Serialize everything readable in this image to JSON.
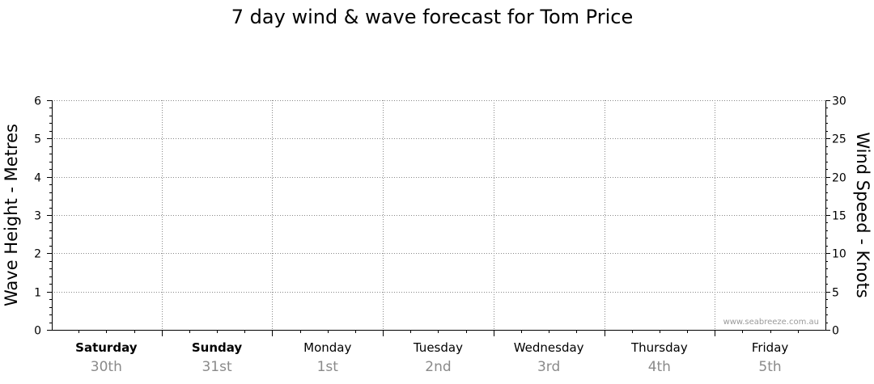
{
  "chart_data": {
    "type": "line",
    "title": "7 day wind & wave forecast for Tom Price",
    "y_left": {
      "label": "Wave Height - Metres",
      "range": [
        0,
        6
      ],
      "ticks": [
        0,
        1,
        2,
        3,
        4,
        5,
        6
      ]
    },
    "y_right": {
      "label": "Wind Speed - Knots",
      "range": [
        0,
        30
      ],
      "ticks": [
        0,
        5,
        10,
        15,
        20,
        25,
        30
      ]
    },
    "days": [
      {
        "name": "Saturday",
        "date": "30th",
        "bold": true
      },
      {
        "name": "Sunday",
        "date": "31st",
        "bold": true
      },
      {
        "name": "Monday",
        "date": "1st",
        "bold": false
      },
      {
        "name": "Tuesday",
        "date": "2nd",
        "bold": false
      },
      {
        "name": "Wednesday",
        "date": "3rd",
        "bold": false
      },
      {
        "name": "Thursday",
        "date": "4th",
        "bold": false
      },
      {
        "name": "Friday",
        "date": "5th",
        "bold": false
      }
    ],
    "grid": true,
    "series": []
  },
  "watermark": "www.seabreeze.com.au"
}
